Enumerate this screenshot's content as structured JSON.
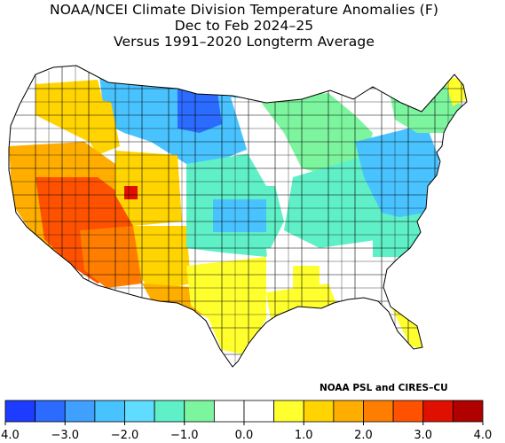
{
  "title": {
    "line1": "NOAA/NCEI Climate Division Temperature Anomalies (F)",
    "line2": "Dec to Feb 2024–25",
    "line3": "Versus 1991–2020 Longterm Average"
  },
  "credit": "NOAA PSL and CIRES–CU",
  "legend": {
    "colors": [
      "#1e3cff",
      "#2c6bff",
      "#3fa0ff",
      "#49c3ff",
      "#5fdcff",
      "#5ff0c8",
      "#7cf59e",
      "#ffffff",
      "#ffffff",
      "#ffff2e",
      "#ffd400",
      "#ffae00",
      "#ff7e00",
      "#ff5200",
      "#e01000",
      "#b00000"
    ],
    "tick_labels": [
      "−4.0",
      "−3.0",
      "−2.0",
      "−1.0",
      "0.0",
      "1.0",
      "2.0",
      "3.0",
      "4.0"
    ],
    "ticks": [
      -4,
      -3,
      -2,
      -1,
      0,
      1,
      2,
      3,
      4
    ],
    "range": [
      -4,
      4
    ]
  }
}
